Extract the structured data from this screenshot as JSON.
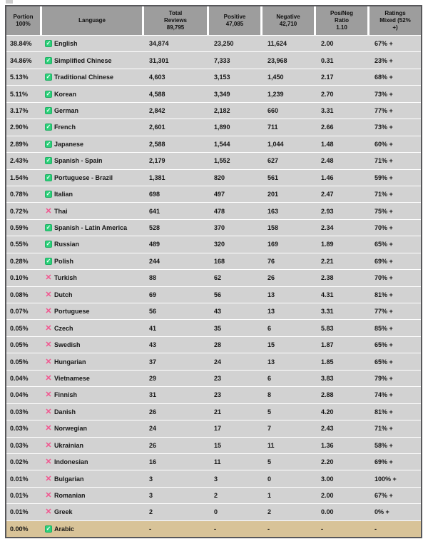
{
  "table": {
    "header": {
      "portion": "Portion\n100%",
      "language": "Language",
      "total": "Total\nReviews\n89,795",
      "positive": "Positive\n47,085",
      "negative": "Negative\n42,710",
      "ratio": "Pos/Neg\nRatio\n1.10",
      "mixed": "Ratings\nMixed (52%\n+)"
    },
    "icons": {
      "check": "✓",
      "cross": "✕"
    },
    "colors": {
      "header_bg": "#9d9d9d",
      "row_bg": "#d2d2d2",
      "highlight_row_bg": "#d8c398",
      "check_green": "#2dd17b",
      "cross_pink": "#f2548e",
      "frame_border": "#57575a"
    },
    "rows": [
      {
        "portion": "38.84%",
        "icon": "check",
        "language": "English",
        "total": "34,874",
        "positive": "23,250",
        "negative": "11,624",
        "ratio": "2.00",
        "mixed": "67% +",
        "highlight": false
      },
      {
        "portion": "34.86%",
        "icon": "check",
        "language": "Simplified Chinese",
        "total": "31,301",
        "positive": "7,333",
        "negative": "23,968",
        "ratio": "0.31",
        "mixed": "23% +",
        "highlight": false
      },
      {
        "portion": "5.13%",
        "icon": "check",
        "language": "Traditional Chinese",
        "total": "4,603",
        "positive": "3,153",
        "negative": "1,450",
        "ratio": "2.17",
        "mixed": "68% +",
        "highlight": false
      },
      {
        "portion": "5.11%",
        "icon": "check",
        "language": "Korean",
        "total": "4,588",
        "positive": "3,349",
        "negative": "1,239",
        "ratio": "2.70",
        "mixed": "73% +",
        "highlight": false
      },
      {
        "portion": "3.17%",
        "icon": "check",
        "language": "German",
        "total": "2,842",
        "positive": "2,182",
        "negative": "660",
        "ratio": "3.31",
        "mixed": "77% +",
        "highlight": false
      },
      {
        "portion": "2.90%",
        "icon": "check",
        "language": "French",
        "total": "2,601",
        "positive": "1,890",
        "negative": "711",
        "ratio": "2.66",
        "mixed": "73% +",
        "highlight": false
      },
      {
        "portion": "2.89%",
        "icon": "check",
        "language": "Japanese",
        "total": "2,588",
        "positive": "1,544",
        "negative": "1,044",
        "ratio": "1.48",
        "mixed": "60% +",
        "highlight": false
      },
      {
        "portion": "2.43%",
        "icon": "check",
        "language": "Spanish - Spain",
        "total": "2,179",
        "positive": "1,552",
        "negative": "627",
        "ratio": "2.48",
        "mixed": "71% +",
        "highlight": false
      },
      {
        "portion": "1.54%",
        "icon": "check",
        "language": "Portuguese - Brazil",
        "total": "1,381",
        "positive": "820",
        "negative": "561",
        "ratio": "1.46",
        "mixed": "59% +",
        "highlight": false
      },
      {
        "portion": "0.78%",
        "icon": "check",
        "language": "Italian",
        "total": "698",
        "positive": "497",
        "negative": "201",
        "ratio": "2.47",
        "mixed": "71% +",
        "highlight": false
      },
      {
        "portion": "0.72%",
        "icon": "cross",
        "language": "Thai",
        "total": "641",
        "positive": "478",
        "negative": "163",
        "ratio": "2.93",
        "mixed": "75% +",
        "highlight": false
      },
      {
        "portion": "0.59%",
        "icon": "check",
        "language": "Spanish - Latin America",
        "total": "528",
        "positive": "370",
        "negative": "158",
        "ratio": "2.34",
        "mixed": "70% +",
        "highlight": false
      },
      {
        "portion": "0.55%",
        "icon": "check",
        "language": "Russian",
        "total": "489",
        "positive": "320",
        "negative": "169",
        "ratio": "1.89",
        "mixed": "65% +",
        "highlight": false
      },
      {
        "portion": "0.28%",
        "icon": "check",
        "language": "Polish",
        "total": "244",
        "positive": "168",
        "negative": "76",
        "ratio": "2.21",
        "mixed": "69% +",
        "highlight": false
      },
      {
        "portion": "0.10%",
        "icon": "cross",
        "language": "Turkish",
        "total": "88",
        "positive": "62",
        "negative": "26",
        "ratio": "2.38",
        "mixed": "70% +",
        "highlight": false
      },
      {
        "portion": "0.08%",
        "icon": "cross",
        "language": "Dutch",
        "total": "69",
        "positive": "56",
        "negative": "13",
        "ratio": "4.31",
        "mixed": "81% +",
        "highlight": false
      },
      {
        "portion": "0.07%",
        "icon": "cross",
        "language": "Portuguese",
        "total": "56",
        "positive": "43",
        "negative": "13",
        "ratio": "3.31",
        "mixed": "77% +",
        "highlight": false
      },
      {
        "portion": "0.05%",
        "icon": "cross",
        "language": "Czech",
        "total": "41",
        "positive": "35",
        "negative": "6",
        "ratio": "5.83",
        "mixed": "85% +",
        "highlight": false
      },
      {
        "portion": "0.05%",
        "icon": "cross",
        "language": "Swedish",
        "total": "43",
        "positive": "28",
        "negative": "15",
        "ratio": "1.87",
        "mixed": "65% +",
        "highlight": false
      },
      {
        "portion": "0.05%",
        "icon": "cross",
        "language": "Hungarian",
        "total": "37",
        "positive": "24",
        "negative": "13",
        "ratio": "1.85",
        "mixed": "65% +",
        "highlight": false
      },
      {
        "portion": "0.04%",
        "icon": "cross",
        "language": "Vietnamese",
        "total": "29",
        "positive": "23",
        "negative": "6",
        "ratio": "3.83",
        "mixed": "79% +",
        "highlight": false
      },
      {
        "portion": "0.04%",
        "icon": "cross",
        "language": "Finnish",
        "total": "31",
        "positive": "23",
        "negative": "8",
        "ratio": "2.88",
        "mixed": "74% +",
        "highlight": false
      },
      {
        "portion": "0.03%",
        "icon": "cross",
        "language": "Danish",
        "total": "26",
        "positive": "21",
        "negative": "5",
        "ratio": "4.20",
        "mixed": "81% +",
        "highlight": false
      },
      {
        "portion": "0.03%",
        "icon": "cross",
        "language": "Norwegian",
        "total": "24",
        "positive": "17",
        "negative": "7",
        "ratio": "2.43",
        "mixed": "71% +",
        "highlight": false
      },
      {
        "portion": "0.03%",
        "icon": "cross",
        "language": "Ukrainian",
        "total": "26",
        "positive": "15",
        "negative": "11",
        "ratio": "1.36",
        "mixed": "58% +",
        "highlight": false
      },
      {
        "portion": "0.02%",
        "icon": "cross",
        "language": "Indonesian",
        "total": "16",
        "positive": "11",
        "negative": "5",
        "ratio": "2.20",
        "mixed": "69% +",
        "highlight": false
      },
      {
        "portion": "0.01%",
        "icon": "cross",
        "language": "Bulgarian",
        "total": "3",
        "positive": "3",
        "negative": "0",
        "ratio": "3.00",
        "mixed": "100% +",
        "highlight": false
      },
      {
        "portion": "0.01%",
        "icon": "cross",
        "language": "Romanian",
        "total": "3",
        "positive": "2",
        "negative": "1",
        "ratio": "2.00",
        "mixed": "67% +",
        "highlight": false
      },
      {
        "portion": "0.01%",
        "icon": "cross",
        "language": "Greek",
        "total": "2",
        "positive": "0",
        "negative": "2",
        "ratio": "0.00",
        "mixed": "0% +",
        "highlight": false
      },
      {
        "portion": "0.00%",
        "icon": "check",
        "language": "Arabic",
        "total": "-",
        "positive": "-",
        "negative": "-",
        "ratio": "-",
        "mixed": "-",
        "highlight": true
      }
    ]
  }
}
